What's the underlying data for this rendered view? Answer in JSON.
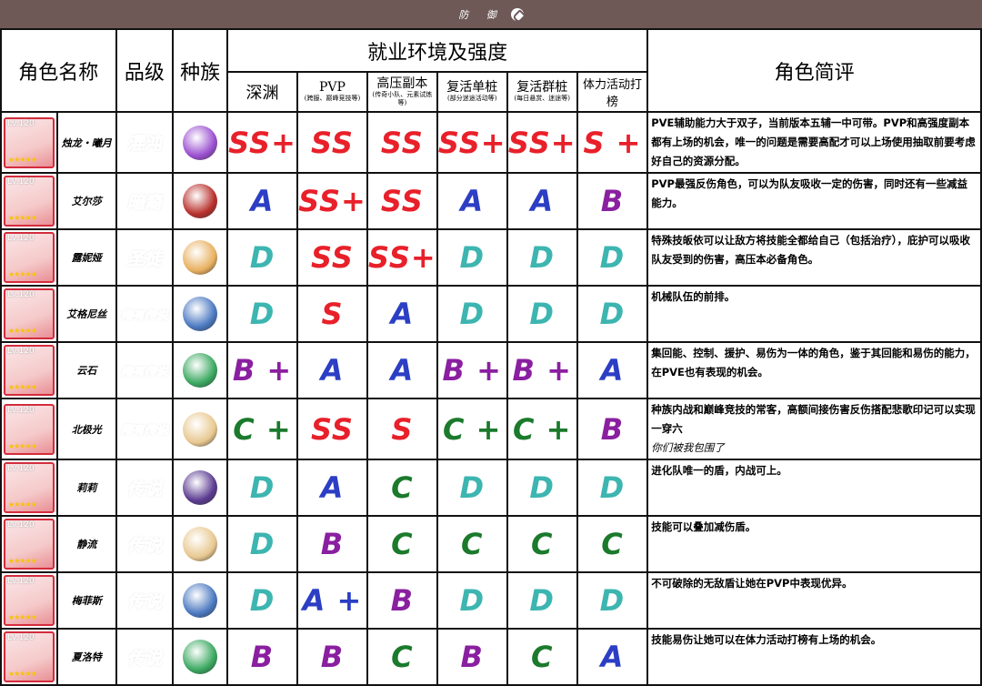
{
  "topbar": {
    "title": "防 御",
    "icon": "shield-icon"
  },
  "header": {
    "name": "角色名称",
    "rank": "品级",
    "race": "种族",
    "env": "就业环境及强度",
    "review": "角色简评",
    "cols": [
      {
        "title": "深渊",
        "note": ""
      },
      {
        "title": "PVP",
        "note": "(跨服、巅峰竞技等)"
      },
      {
        "title": "高压副本",
        "note": "(传奇小队、元素试炼等)"
      },
      {
        "title": "复活单桩",
        "note": "(部分迷途活动等)"
      },
      {
        "title": "复活群桩",
        "note": "(每日悬赏、迷途等)"
      },
      {
        "title": "体力活动打榜",
        "note": ""
      }
    ]
  },
  "colors": {
    "SS+": "#e8202a",
    "SS": "#e8202a",
    "S": "#e8202a",
    "S +": "#e8202a",
    "A": "#2b3ec4",
    "A +": "#2b3ec4",
    "B": "#8a1fa0",
    "B +": "#8a1fa0",
    "C": "#1b7a2c",
    "C +": "#1b7a2c",
    "D": "#3db5b0"
  },
  "rows": [
    {
      "level": "Lv.120",
      "name": "烛龙・曦月",
      "rank": "混沌",
      "rank_color": "#a03ad0",
      "race_color": "#9a4fd0",
      "grades": [
        "SS+",
        "SS",
        "SS",
        "SS+",
        "SS+",
        "S +"
      ],
      "review": "PVE辅助能力大于双子，当前版本五辅一中可带。PVP和高强度副本都有上场的机会，唯一的问题是需要高配才可以上场使用抽取前要考虑好自己的资源分配。",
      "note": ""
    },
    {
      "level": "Lv.120",
      "name": "艾尔莎",
      "rank": "暗裔",
      "rank_color": "#e0308a",
      "race_color": "#b8302c",
      "grades": [
        "A",
        "SS+",
        "SS",
        "A",
        "A",
        "B"
      ],
      "review": "PVP最强反伤角色，可以为队友吸收一定的伤害，同时还有一些减益能力。",
      "note": ""
    },
    {
      "level": "Lv.120",
      "name": "露妮娅",
      "rank": "圣徒",
      "rank_color": "#f08a1c",
      "race_color": "#e8b060",
      "grades": [
        "D",
        "SS",
        "SS+",
        "D",
        "D",
        "D"
      ],
      "review": "特殊技皈依可以让敌方将技能全都给自己（包括治疗），庇护可以吸收队友受到的伤害，高压本必备角色。",
      "note": ""
    },
    {
      "level": "Lv.120",
      "name": "艾格尼丝",
      "rank": "稀有传说",
      "rank_color": "#f07a90",
      "race_color": "#4a78c0",
      "grades": [
        "D",
        "S",
        "A",
        "D",
        "D",
        "D"
      ],
      "review": "机械队伍的前排。",
      "note": ""
    },
    {
      "level": "Lv.120",
      "name": "云石",
      "rank": "稀有传说",
      "rank_color": "#f07a90",
      "race_color": "#3aa860",
      "grades": [
        "B +",
        "A",
        "A",
        "B +",
        "B +",
        "A"
      ],
      "review": "集回能、控制、援护、易伤为一体的角色，鉴于其回能和易伤的能力，在PVE也有表现的机会。",
      "note": ""
    },
    {
      "level": "Lv.120",
      "name": "北极光",
      "rank": "稀有传说",
      "rank_color": "#f07a90",
      "race_color": "#e8c890",
      "grades": [
        "C +",
        "SS",
        "S",
        "C +",
        "C +",
        "B"
      ],
      "review": "种族内战和巅峰竞技的常客，高额间接伤害反伤搭配悲歌印记可以实现一穿六",
      "note": "你们被我包围了"
    },
    {
      "level": "Lv.120",
      "name": "莉莉",
      "rank": "传说",
      "rank_color": "#b030c8",
      "race_color": "#5a3a90",
      "grades": [
        "D",
        "A",
        "C",
        "D",
        "D",
        "D"
      ],
      "review": "进化队唯一的盾，内战可上。",
      "note": ""
    },
    {
      "level": "Lv.120",
      "name": "静流",
      "rank": "传说",
      "rank_color": "#b030c8",
      "race_color": "#e8c890",
      "grades": [
        "D",
        "B",
        "C",
        "C",
        "C",
        "C"
      ],
      "review": "技能可以叠加减伤盾。",
      "note": ""
    },
    {
      "level": "Lv.120",
      "name": "梅菲斯",
      "rank": "传说",
      "rank_color": "#b030c8",
      "race_color": "#4a78c0",
      "grades": [
        "D",
        "A +",
        "B",
        "D",
        "D",
        "D"
      ],
      "review": "不可破除的无敌盾让她在PVP中表现优异。",
      "note": ""
    },
    {
      "level": "Lv.120",
      "name": "夏洛特",
      "rank": "传说",
      "rank_color": "#b030c8",
      "race_color": "#3aa860",
      "grades": [
        "B",
        "B",
        "C",
        "B",
        "C",
        "A"
      ],
      "review": "技能易伤让她可以在体力活动打榜有上场的机会。",
      "note": ""
    }
  ]
}
